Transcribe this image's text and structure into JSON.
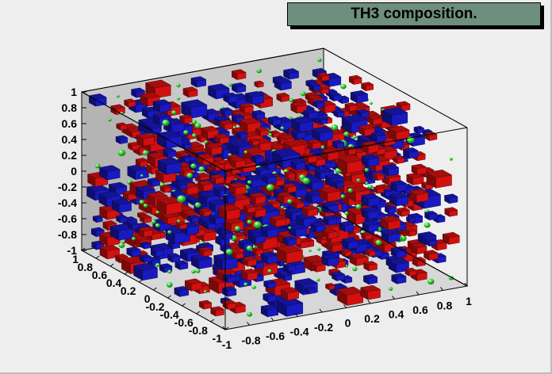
{
  "chart_data": {
    "type": "3d-box-scatter",
    "title": "TH3 composition.",
    "series": [
      {
        "name": "",
        "color": "#dd1111",
        "marker": "box"
      },
      {
        "name": "",
        "color": "#1a1acc",
        "marker": "box"
      },
      {
        "name": "",
        "color": "#22cc22",
        "marker": "sphere"
      }
    ],
    "axes": {
      "x": {
        "range": [
          -1,
          1
        ],
        "ticks": [
          "-1",
          "-0.8",
          "-0.6",
          "-0.4",
          "-0.2",
          "0",
          "0.2",
          "0.4",
          "0.6",
          "0.8",
          "1"
        ]
      },
      "y": {
        "range": [
          -1,
          1
        ],
        "ticks": [
          "-1",
          "-0.8",
          "-0.6",
          "-0.4",
          "-0.2",
          "0",
          "0.2",
          "0.4",
          "0.6",
          "0.8",
          "1"
        ]
      },
      "z": {
        "range": [
          -1,
          1
        ],
        "ticks": [
          "-1",
          "-0.8",
          "-0.6",
          "-0.4",
          "-0.2",
          "0",
          "0.2",
          "0.4",
          "0.6",
          "0.8",
          "1"
        ]
      }
    },
    "grid": false
  },
  "colors": {
    "frame_back": "#c8c8c8",
    "frame_side": "#b4b4b4",
    "title_fill": "#6f8f7e"
  }
}
